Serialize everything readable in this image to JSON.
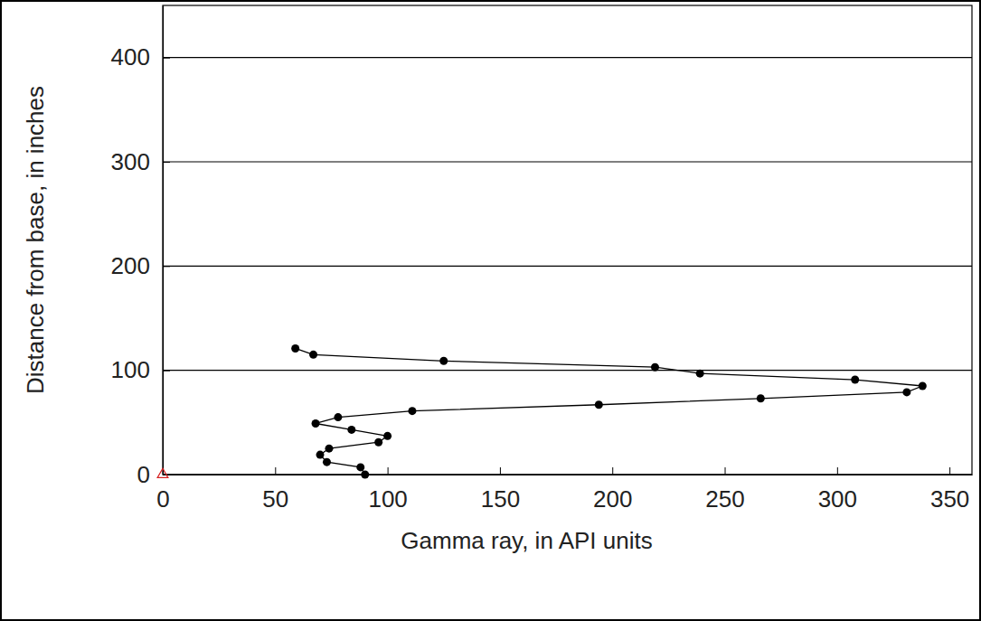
{
  "chart_data": {
    "type": "line",
    "x_label": "Gamma ray, in API units",
    "y_label": "Distance from base, in inches",
    "xlim": [
      0,
      360
    ],
    "xticks": [
      0,
      50,
      100,
      150,
      200,
      250,
      300,
      350
    ],
    "ylim": [
      0,
      450
    ],
    "yticks": [
      0,
      100,
      200,
      300,
      400
    ],
    "grid": true,
    "series": [
      {
        "color": "#000000",
        "marker": "circle",
        "line_style": "solid",
        "x": [
          90,
          88,
          73,
          70,
          74,
          96,
          100,
          84,
          68,
          78,
          111,
          194,
          266,
          331,
          338,
          308,
          239,
          219,
          125,
          67,
          59
        ],
        "values": [
          0,
          7,
          12,
          19,
          25,
          31,
          37,
          43,
          49,
          55,
          61,
          67,
          73,
          79,
          85,
          91,
          97,
          103,
          109,
          115,
          121
        ]
      },
      {
        "type": "scatter",
        "color": "#d62020",
        "marker": "triangle",
        "x": [
          0
        ],
        "values": [
          0
        ]
      }
    ]
  }
}
